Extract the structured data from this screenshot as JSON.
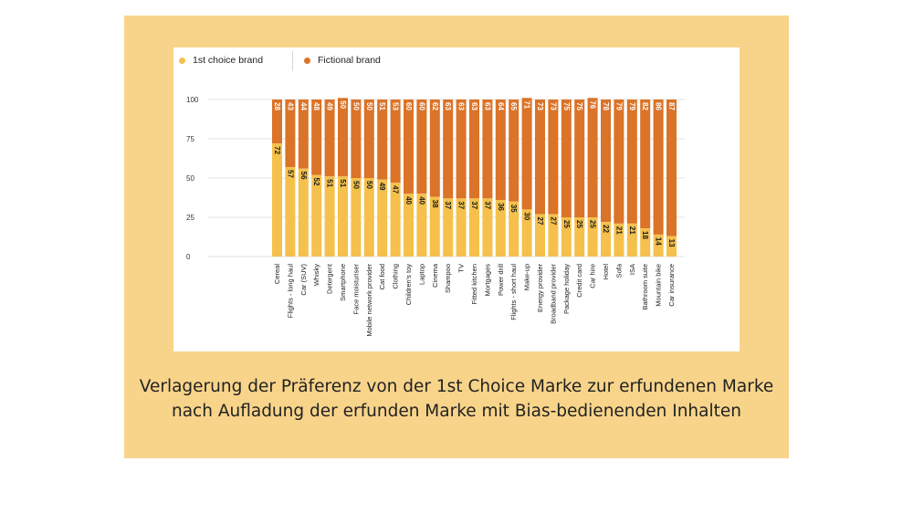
{
  "colors": {
    "panel_bg": "#f8d48a",
    "series_1st": "#f5c14c",
    "series_fictional": "#db7328"
  },
  "caption": {
    "line1": "Verlagerung der Präferenz von der 1st Choice Marke zur erfundenen Marke",
    "line2": "nach Aufladung der erfunden Marke mit Bias-bedienenden Inhalten"
  },
  "chart_data": {
    "type": "bar",
    "stacked": true,
    "legend_position": "top-left",
    "grid": true,
    "ylim": [
      0,
      100
    ],
    "yticks": [
      0,
      25,
      50,
      75,
      100
    ],
    "categories": [
      "Cereal",
      "Flights - long haul",
      "Car (SUV)",
      "Whisky",
      "Detergent",
      "Smartphone",
      "Face moisturiser",
      "Mobile network provider",
      "Cat food",
      "Clothing",
      "Children's toy",
      "Laptop",
      "Cinema",
      "Shampoo",
      "TV",
      "Fitted kitchen",
      "Mortgages",
      "Power drill",
      "Flights - short haul",
      "Make-up",
      "Energy provider",
      "Broadband provider",
      "Package holiday",
      "Credit card",
      "Car hire",
      "Hotel",
      "Sofa",
      "ISA",
      "Bathroom suite",
      "Mountain bike",
      "Car insurance"
    ],
    "series": [
      {
        "name": "1st choice brand",
        "color": "#f5c14c",
        "values": [
          72,
          57,
          56,
          52,
          51,
          51,
          50,
          50,
          49,
          47,
          40,
          40,
          38,
          37,
          37,
          37,
          37,
          36,
          35,
          30,
          27,
          27,
          25,
          25,
          25,
          22,
          21,
          21,
          18,
          14,
          13
        ]
      },
      {
        "name": "Fictional brand",
        "color": "#db7328",
        "values": [
          28,
          43,
          44,
          48,
          49,
          50,
          50,
          50,
          51,
          53,
          60,
          60,
          62,
          63,
          63,
          63,
          63,
          64,
          65,
          71,
          73,
          73,
          75,
          75,
          76,
          78,
          79,
          79,
          82,
          86,
          87
        ]
      }
    ]
  }
}
